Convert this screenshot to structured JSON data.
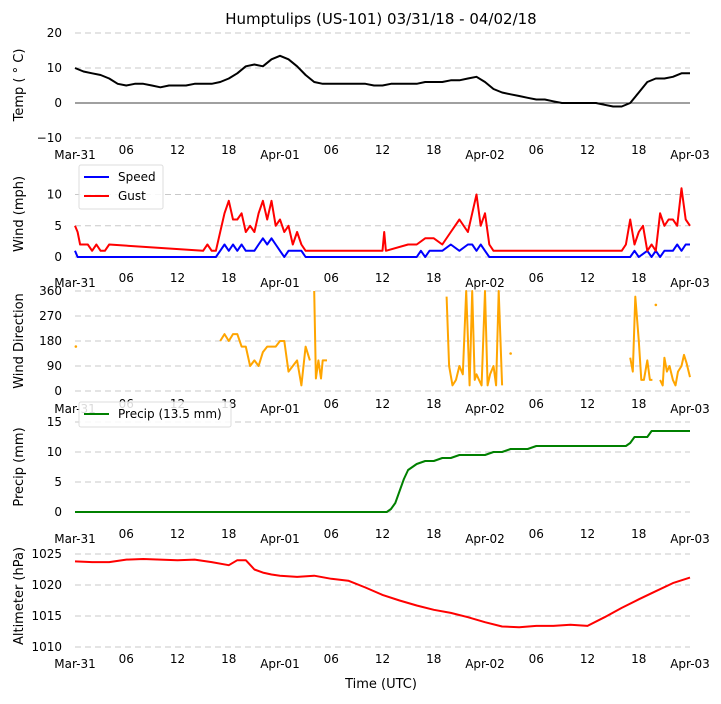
{
  "chart_data": [
    {
      "type": "line",
      "title": "Humptulips (US-101) 03/31/18 - 04/02/18",
      "ylabel": "Temp ($^\\circ$C)",
      "ylabel_display": "Temp ( ° C)",
      "ylim": [
        -10,
        20
      ],
      "yticks": [
        "−10",
        "0",
        "10",
        "20"
      ],
      "ytick_values": [
        -10,
        0,
        10,
        20
      ],
      "xticks": [
        "Mar-31",
        "06",
        "12",
        "18",
        "Apr-01",
        "06",
        "12",
        "18",
        "Apr-02",
        "06",
        "12",
        "18",
        "Apr-03"
      ],
      "x_unit": "hours since 2018-03-31 00 UTC",
      "xlim": [
        0,
        72
      ],
      "grid": true,
      "zero_line": true,
      "series": [
        {
          "name": "Temp",
          "color": "#000000",
          "x": [
            0,
            1,
            2,
            3,
            4,
            5,
            6,
            7,
            8,
            9,
            10,
            11,
            12,
            13,
            14,
            15,
            16,
            17,
            18,
            19,
            20,
            21,
            22,
            23,
            24,
            25,
            26,
            27,
            28,
            29,
            30,
            31,
            32,
            33,
            34,
            35,
            36,
            37,
            38,
            39,
            40,
            41,
            42,
            43,
            44,
            45,
            46,
            47,
            48,
            49,
            50,
            51,
            52,
            53,
            54,
            55,
            56,
            57,
            58,
            59,
            60,
            61,
            62,
            63,
            64,
            65,
            66,
            67,
            68,
            69,
            70,
            71,
            72
          ],
          "values": [
            10,
            9,
            8.5,
            8,
            7,
            5.5,
            5,
            5.5,
            5.5,
            5,
            4.5,
            5,
            5,
            5,
            5.5,
            5.5,
            5.5,
            6,
            7,
            8.5,
            10.5,
            11,
            10.5,
            12.5,
            13.5,
            12.5,
            10.5,
            8,
            6,
            5.5,
            5.5,
            5.5,
            5.5,
            5.5,
            5.5,
            5,
            5,
            5.5,
            5.5,
            5.5,
            5.5,
            6,
            6,
            6,
            6.5,
            6.5,
            7,
            7.5,
            6,
            4,
            3,
            2.5,
            2,
            1.5,
            1,
            1,
            0.5,
            0,
            0,
            0,
            0,
            0,
            -0.5,
            -1,
            -1,
            0,
            3,
            6,
            7,
            7,
            7.5,
            8.5,
            8.5
          ]
        }
      ]
    },
    {
      "type": "line",
      "ylabel": "Wind (mph)",
      "ylim": [
        0,
        12
      ],
      "yticks": [
        "0",
        "5",
        "10"
      ],
      "ytick_values": [
        0,
        5,
        10
      ],
      "xticks": [
        "Mar-31",
        "06",
        "12",
        "18",
        "Apr-01",
        "06",
        "12",
        "18",
        "Apr-02",
        "06",
        "12",
        "18",
        "Apr-03"
      ],
      "xlim": [
        0,
        72
      ],
      "grid": true,
      "legend": {
        "placement": "top-left",
        "entries": [
          "Speed",
          "Gust"
        ]
      },
      "series": [
        {
          "name": "Speed",
          "color": "#0000ff",
          "x": [
            0,
            0.3,
            1,
            16.5,
            17,
            17.5,
            18,
            18.5,
            19,
            19.5,
            20,
            20.5,
            21,
            21.5,
            22,
            22.5,
            23,
            23.5,
            24,
            24.5,
            25,
            25.5,
            26,
            26.5,
            27,
            28,
            40,
            40.5,
            41,
            41.5,
            42,
            43,
            44,
            45,
            46,
            46.5,
            47,
            47.5,
            48,
            48.5,
            49,
            50,
            65,
            65.5,
            66,
            67,
            67.5,
            68,
            68.5,
            69,
            69.5,
            70,
            70.5,
            71,
            71.5,
            72
          ],
          "values": [
            1,
            0,
            0,
            0,
            1,
            2,
            1,
            2,
            1,
            2,
            1,
            1,
            1,
            2,
            3,
            2,
            3,
            2,
            1,
            0,
            1,
            1,
            1,
            1,
            0,
            0,
            0,
            1,
            0,
            1,
            1,
            1,
            2,
            1,
            2,
            2,
            1,
            2,
            1,
            0,
            0,
            0,
            0,
            1,
            0,
            1,
            0,
            1,
            0,
            1,
            1,
            1,
            2,
            1,
            2,
            2
          ]
        },
        {
          "name": "Gust",
          "color": "#ff0000",
          "x": [
            0,
            0.3,
            0.6,
            1,
            1.5,
            2,
            2.5,
            3,
            3.5,
            4,
            15,
            15.5,
            16,
            16.5,
            17,
            17.5,
            18,
            18.5,
            19,
            19.5,
            20,
            20.5,
            21,
            21.5,
            22,
            22.5,
            23,
            23.5,
            24,
            24.5,
            25,
            25.5,
            26,
            26.5,
            27,
            27.5,
            36,
            36.2,
            36.4,
            39,
            40,
            41,
            42,
            43,
            44,
            45,
            46,
            46.5,
            47,
            47.5,
            48,
            48.5,
            49,
            49.5,
            50,
            52,
            55,
            58,
            60,
            64,
            64.5,
            65,
            65.5,
            66,
            66.5,
            67,
            67.5,
            68,
            68.5,
            69,
            69.5,
            70,
            70.5,
            71,
            71.5,
            72
          ],
          "values": [
            5,
            4,
            2,
            2,
            2,
            1,
            2,
            1,
            1,
            2,
            1,
            2,
            1,
            1,
            4,
            7,
            9,
            6,
            6,
            7,
            4,
            5,
            4,
            7,
            9,
            6,
            9,
            5,
            6,
            4,
            5,
            2,
            4,
            2,
            1,
            1,
            1,
            4,
            1,
            2,
            2,
            3,
            3,
            2,
            4,
            6,
            4,
            7,
            10,
            5,
            7,
            2,
            1,
            1,
            1,
            1,
            1,
            1,
            1,
            1,
            2,
            6,
            2,
            4,
            5,
            1,
            2,
            1,
            7,
            5,
            6,
            6,
            5,
            11,
            6,
            5
          ]
        }
      ]
    },
    {
      "type": "line",
      "ylabel": "Wind Direction",
      "ylim": [
        0,
        360
      ],
      "yticks": [
        "0",
        "90",
        "180",
        "270",
        "360"
      ],
      "ytick_values": [
        0,
        90,
        180,
        270,
        360
      ],
      "xticks": [
        "Mar-31",
        "06",
        "12",
        "18",
        "Apr-01",
        "06",
        "12",
        "18",
        "Apr-02",
        "06",
        "12",
        "18",
        "Apr-03"
      ],
      "xlim": [
        0,
        72
      ],
      "grid": true,
      "series": [
        {
          "name": "Direction",
          "color": "#ffa500",
          "segments": [
            {
              "x": [
                0.1
              ],
              "values": [
                160
              ]
            },
            {
              "x": [
                17,
                17.5,
                18,
                18.5,
                19,
                19.5,
                20,
                20.5,
                21,
                21.5,
                22,
                22.5,
                23,
                23.5,
                24,
                24.5,
                25,
                25.5,
                26,
                26.5,
                27,
                27.5
              ],
              "values": [
                180,
                205,
                180,
                205,
                205,
                160,
                160,
                90,
                110,
                90,
                140,
                160,
                160,
                160,
                180,
                180,
                70,
                90,
                110,
                20,
                160,
                110
              ]
            },
            {
              "x": [
                28,
                28.2,
                28.5,
                28.8,
                29,
                29.3,
                29.5
              ],
              "values": [
                360,
                45,
                110,
                45,
                110,
                110,
                110
              ]
            },
            {
              "x": [
                43.5,
                43.8,
                44.2,
                44.6,
                45,
                45.4,
                45.8,
                46.2,
                46.5,
                46.8,
                47,
                47.3,
                47.6,
                48,
                48.3,
                48.6,
                49,
                49.3,
                49.6,
                50
              ],
              "values": [
                340,
                90,
                20,
                40,
                90,
                60,
                360,
                20,
                360,
                40,
                60,
                40,
                20,
                360,
                20,
                60,
                90,
                20,
                360,
                20
              ]
            },
            {
              "x": [
                51
              ],
              "values": [
                135
              ]
            },
            {
              "x": [
                65,
                65.3,
                65.6,
                66,
                66.3,
                66.6,
                67,
                67.3,
                67.6
              ],
              "values": [
                120,
                70,
                340,
                180,
                40,
                40,
                110,
                40,
                40
              ]
            },
            {
              "x": [
                68
              ],
              "values": [
                310
              ]
            },
            {
              "x": [
                68.5,
                68.8,
                69,
                69.3,
                69.6,
                70,
                70.3,
                70.6,
                71,
                71.3,
                71.6,
                72
              ],
              "values": [
                40,
                20,
                120,
                70,
                90,
                40,
                20,
                70,
                90,
                130,
                100,
                50
              ]
            }
          ]
        }
      ]
    },
    {
      "type": "line",
      "ylabel": "Precip (mm)",
      "ylim": [
        0,
        15
      ],
      "yticks": [
        "0",
        "5",
        "10",
        "15"
      ],
      "ytick_values": [
        0,
        5,
        10,
        15
      ],
      "xticks": [
        "Mar-31",
        "06",
        "12",
        "18",
        "Apr-01",
        "06",
        "12",
        "18",
        "Apr-02",
        "06",
        "12",
        "18",
        "Apr-03"
      ],
      "xlim": [
        0,
        72
      ],
      "grid": true,
      "legend": {
        "placement": "top-left",
        "entries": [
          "Precip (13.5 mm)"
        ]
      },
      "series": [
        {
          "name": "Precip (13.5 mm)",
          "color": "#008000",
          "x": [
            0,
            36.5,
            37,
            37.5,
            38,
            38.5,
            39,
            39.5,
            40,
            41,
            42,
            43,
            44,
            45,
            46,
            47,
            48,
            49,
            50,
            51,
            52,
            53,
            54,
            55,
            56,
            60,
            64,
            64.5,
            65,
            65.5,
            66,
            67,
            67.5,
            68,
            72
          ],
          "values": [
            0,
            0,
            0.5,
            1.5,
            3.5,
            5.5,
            7,
            7.5,
            8,
            8.5,
            8.5,
            9,
            9,
            9.5,
            9.5,
            9.5,
            9.5,
            10,
            10,
            10.5,
            10.5,
            10.5,
            11,
            11,
            11,
            11,
            11,
            11,
            11.5,
            12.5,
            12.5,
            12.5,
            13.5,
            13.5,
            13.5
          ]
        }
      ]
    },
    {
      "type": "line",
      "ylabel": "Altimeter (hPa)",
      "xlabel": "Time (UTC)",
      "ylim": [
        1010,
        1025
      ],
      "yticks": [
        "1010",
        "1015",
        "1020",
        "1025"
      ],
      "ytick_values": [
        1010,
        1015,
        1020,
        1025
      ],
      "xticks": [
        "Mar-31",
        "06",
        "12",
        "18",
        "Apr-01",
        "06",
        "12",
        "18",
        "Apr-02",
        "06",
        "12",
        "18",
        "Apr-03"
      ],
      "xlim": [
        0,
        72
      ],
      "grid": true,
      "series": [
        {
          "name": "Altimeter",
          "color": "#ff0000",
          "x": [
            0,
            2,
            4,
            6,
            8,
            10,
            12,
            14,
            16,
            18,
            19,
            20,
            21,
            22,
            23,
            24,
            26,
            28,
            30,
            32,
            34,
            36,
            38,
            40,
            42,
            44,
            46,
            48,
            50,
            52,
            54,
            56,
            58,
            60,
            62,
            64,
            66,
            68,
            70,
            72
          ],
          "values": [
            1023.8,
            1023.7,
            1023.7,
            1024.1,
            1024.2,
            1024.1,
            1024.0,
            1024.1,
            1023.7,
            1023.2,
            1024.0,
            1024.0,
            1022.5,
            1022.0,
            1021.7,
            1021.5,
            1021.3,
            1021.5,
            1021.0,
            1020.7,
            1019.6,
            1018.4,
            1017.5,
            1016.7,
            1016.0,
            1015.5,
            1014.8,
            1014.0,
            1013.3,
            1013.2,
            1013.4,
            1013.4,
            1013.6,
            1013.4,
            1014.8,
            1016.3,
            1017.7,
            1019.0,
            1020.3,
            1021.2
          ]
        }
      ]
    }
  ]
}
